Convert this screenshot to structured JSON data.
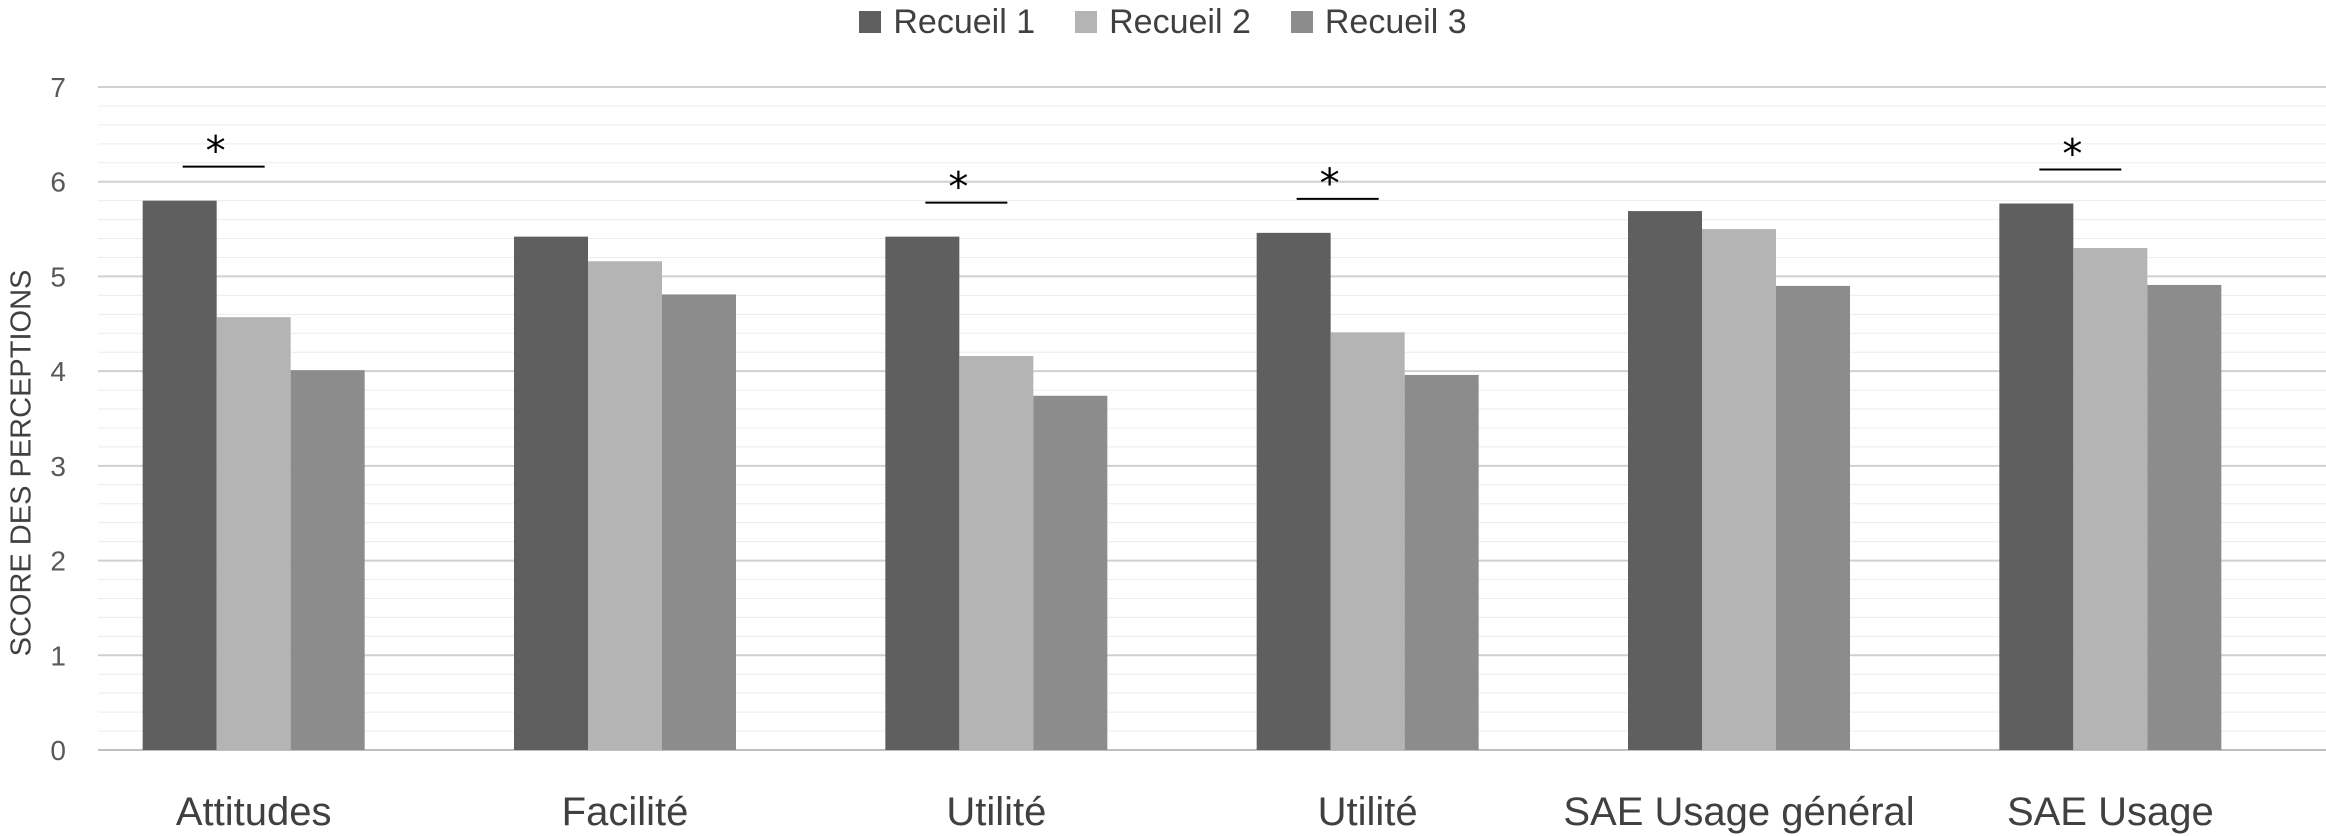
{
  "chart_data": {
    "type": "bar",
    "title": "",
    "xlabel": "",
    "ylabel": "SCORE DES PERCEPTIONS",
    "ylim": [
      0,
      7
    ],
    "yticks": [
      "0",
      "1",
      "2",
      "3",
      "4",
      "5",
      "6",
      "7"
    ],
    "categories": [
      "Attitudes",
      "Facilité",
      "Utilité",
      "Utilité",
      "SAE Usage général",
      "SAE Usage"
    ],
    "series": [
      {
        "name": "Recueil 1",
        "color": "#5f5f5f",
        "values": [
          5.8,
          5.42,
          5.42,
          5.46,
          5.69,
          5.77
        ]
      },
      {
        "name": "Recueil 2",
        "color": "#b4b4b4",
        "values": [
          4.57,
          5.16,
          4.16,
          4.41,
          5.5,
          5.3
        ]
      },
      {
        "name": "Recueil 3",
        "color": "#8c8c8c",
        "values": [
          4.01,
          4.81,
          3.74,
          3.96,
          4.9,
          4.91
        ]
      }
    ],
    "significance": [
      {
        "category_index": 0,
        "label": "*"
      },
      {
        "category_index": 2,
        "label": "*"
      },
      {
        "category_index": 3,
        "label": "*"
      },
      {
        "category_index": 5,
        "label": "*"
      }
    ],
    "grid": true,
    "legend_position": "top-center"
  }
}
